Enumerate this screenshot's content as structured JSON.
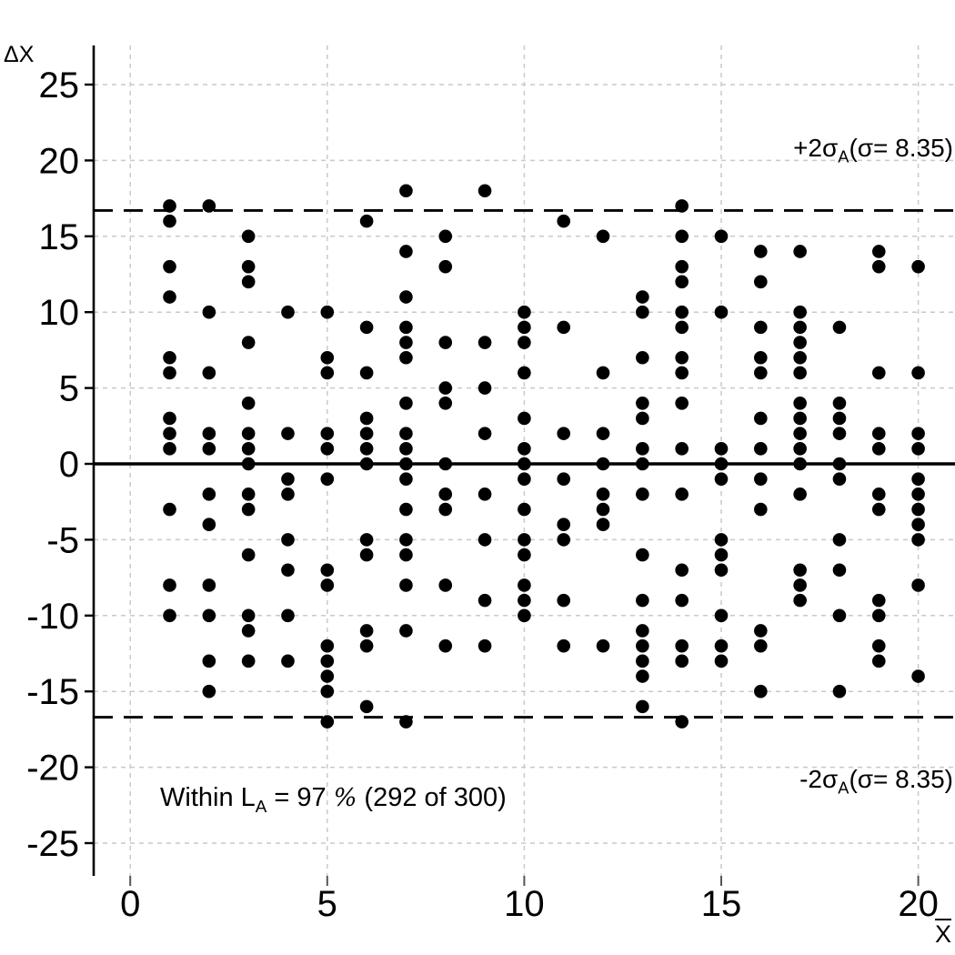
{
  "chart_data": {
    "type": "scatter",
    "title": "",
    "y_axis_label": "ΔX",
    "x_axis_label": {
      "text": "X",
      "overline": true
    },
    "x_ticks": [
      0,
      5,
      10,
      15,
      20
    ],
    "y_ticks": [
      -25,
      -20,
      -15,
      -10,
      -5,
      0,
      5,
      10,
      15,
      20,
      25
    ],
    "xlim": [
      -0.9,
      20.9
    ],
    "ylim": [
      -27.2,
      27.6
    ],
    "grid": true,
    "point_color": "#000000",
    "grid_color": "#c9c9c9",
    "mean_line_y": 0,
    "sigma": 8.35,
    "limit_upper": 16.7,
    "limit_lower": -16.7,
    "annotations": {
      "upper": {
        "pre": "+2σ",
        "sub": "A",
        "post": "(σ= 8.35)"
      },
      "lower": {
        "pre": "-2σ",
        "sub": "A",
        "post": "(σ= 8.35)"
      },
      "within": {
        "pre": "Within L",
        "sub": "A",
        "mid": " = 97 ",
        "pct": "%",
        "post": " (292 of 300)"
      }
    },
    "columns": [
      {
        "x": 1,
        "ys": [
          17,
          16,
          13,
          11,
          7,
          6,
          3,
          2,
          1,
          -3,
          -8,
          -10
        ]
      },
      {
        "x": 2,
        "ys": [
          17,
          10,
          6,
          2,
          1,
          -2,
          -4,
          -8,
          -10,
          -13,
          -15
        ]
      },
      {
        "x": 3,
        "ys": [
          15,
          13,
          12,
          8,
          4,
          2,
          1,
          0,
          -2,
          -3,
          -6,
          -10,
          -11,
          -13
        ]
      },
      {
        "x": 4,
        "ys": [
          10,
          2,
          -1,
          -2,
          -5,
          -7,
          -10,
          -13
        ]
      },
      {
        "x": 5,
        "ys": [
          10,
          7,
          6,
          2,
          1,
          -1,
          -7,
          -8,
          -12,
          -13,
          -14,
          -15,
          -17
        ]
      },
      {
        "x": 6,
        "ys": [
          16,
          9,
          6,
          3,
          2,
          1,
          0,
          -5,
          -6,
          -11,
          -12,
          -16
        ]
      },
      {
        "x": 7,
        "ys": [
          18,
          14,
          11,
          9,
          8,
          7,
          4,
          2,
          1,
          0,
          -1,
          -3,
          -5,
          -6,
          -8,
          -11,
          -17
        ]
      },
      {
        "x": 8,
        "ys": [
          15,
          13,
          8,
          5,
          4,
          0,
          -2,
          -3,
          -8,
          -12
        ]
      },
      {
        "x": 9,
        "ys": [
          18,
          8,
          5,
          2,
          -2,
          -5,
          -9,
          -12
        ]
      },
      {
        "x": 10,
        "ys": [
          10,
          9,
          8,
          6,
          3,
          1,
          0,
          -1,
          -3,
          -5,
          -6,
          -8,
          -9,
          -10
        ]
      },
      {
        "x": 11,
        "ys": [
          16,
          9,
          2,
          -1,
          -4,
          -5,
          -9,
          -12
        ]
      },
      {
        "x": 12,
        "ys": [
          15,
          6,
          2,
          0,
          -2,
          -3,
          -4,
          -12
        ]
      },
      {
        "x": 13,
        "ys": [
          11,
          10,
          7,
          4,
          3,
          1,
          0,
          -2,
          -6,
          -9,
          -11,
          -12,
          -13,
          -14,
          -16
        ]
      },
      {
        "x": 14,
        "ys": [
          17,
          15,
          13,
          12,
          10,
          9,
          7,
          6,
          4,
          1,
          -2,
          -7,
          -9,
          -12,
          -13,
          -17
        ]
      },
      {
        "x": 15,
        "ys": [
          15,
          10,
          1,
          0,
          -1,
          -5,
          -6,
          -7,
          -10,
          -12,
          -13
        ]
      },
      {
        "x": 16,
        "ys": [
          14,
          12,
          9,
          7,
          6,
          3,
          1,
          -1,
          -3,
          -11,
          -12,
          -15
        ]
      },
      {
        "x": 17,
        "ys": [
          14,
          10,
          9,
          8,
          7,
          6,
          4,
          3,
          2,
          1,
          0,
          -2,
          -7,
          -8,
          -9
        ]
      },
      {
        "x": 18,
        "ys": [
          9,
          4,
          3,
          2,
          0,
          -1,
          -5,
          -7,
          -10,
          -15
        ]
      },
      {
        "x": 19,
        "ys": [
          14,
          13,
          6,
          2,
          1,
          -2,
          -3,
          -9,
          -10,
          -12,
          -13
        ]
      },
      {
        "x": 20,
        "ys": [
          13,
          6,
          2,
          1,
          -1,
          -2,
          -3,
          -4,
          -5,
          -8,
          -14
        ]
      }
    ]
  }
}
